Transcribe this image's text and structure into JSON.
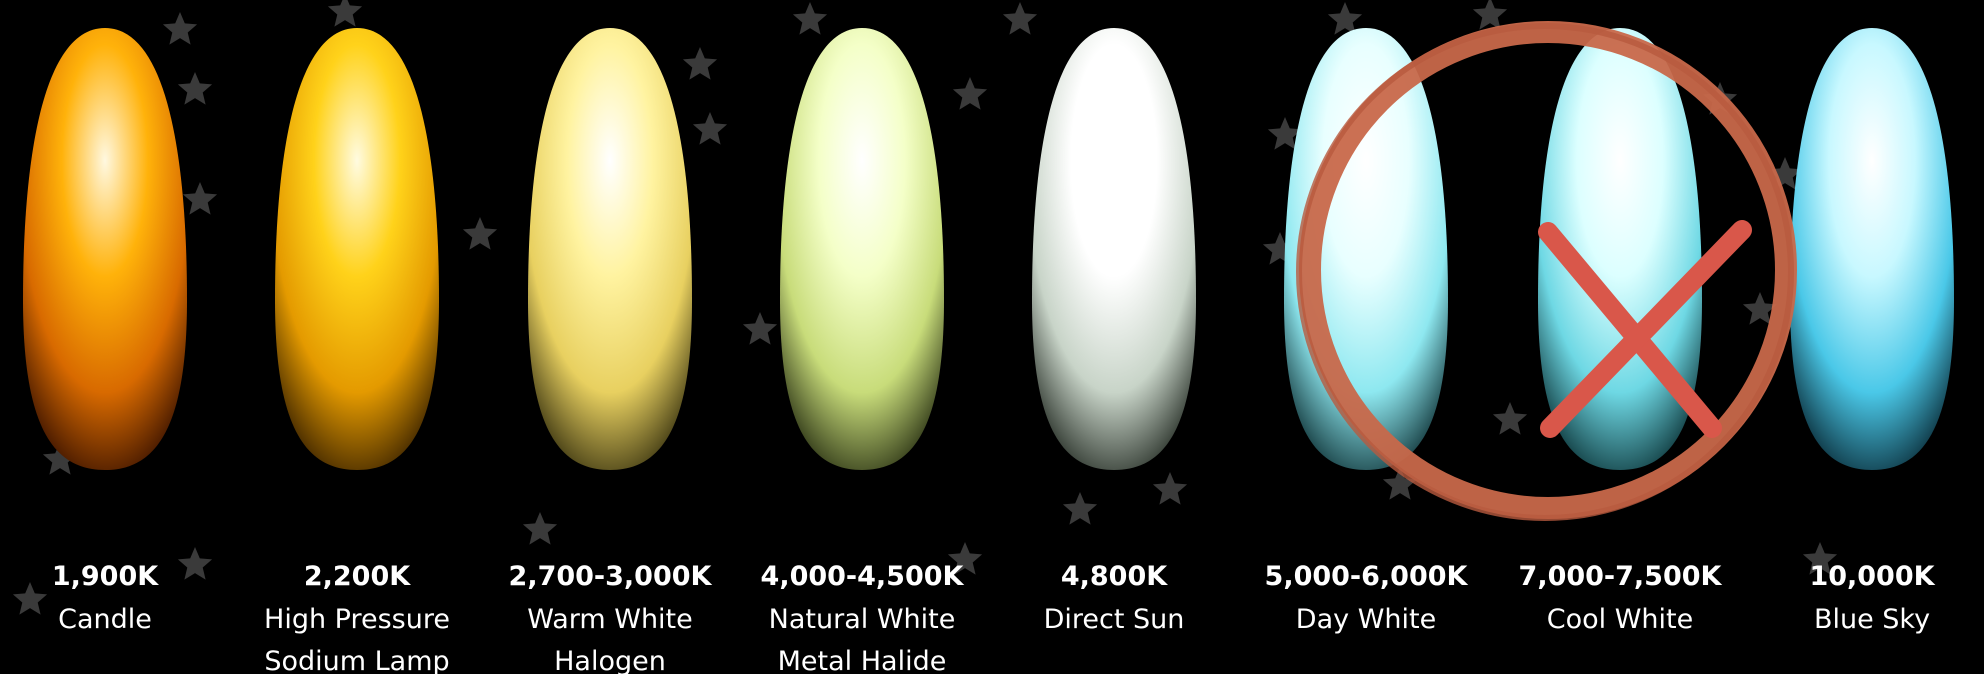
{
  "items": [
    {
      "temperature": "1,900K",
      "lines": [
        "Candle"
      ]
    },
    {
      "temperature": "2,200K",
      "lines": [
        "High Pressure",
        "Sodium Lamp"
      ]
    },
    {
      "temperature": "2,700-3,000K",
      "lines": [
        "Warm White",
        "Halogen"
      ]
    },
    {
      "temperature": "4,000-4,500K",
      "lines": [
        "Natural White",
        "Metal Halide"
      ]
    },
    {
      "temperature": "4,800K",
      "lines": [
        "Direct Sun"
      ]
    },
    {
      "temperature": "5,000-6,000K",
      "lines": [
        "Day White"
      ]
    },
    {
      "temperature": "7,000-7,500K",
      "lines": [
        "Cool White"
      ]
    },
    {
      "temperature": "10,000K",
      "lines": [
        "Blue Sky"
      ]
    }
  ]
}
